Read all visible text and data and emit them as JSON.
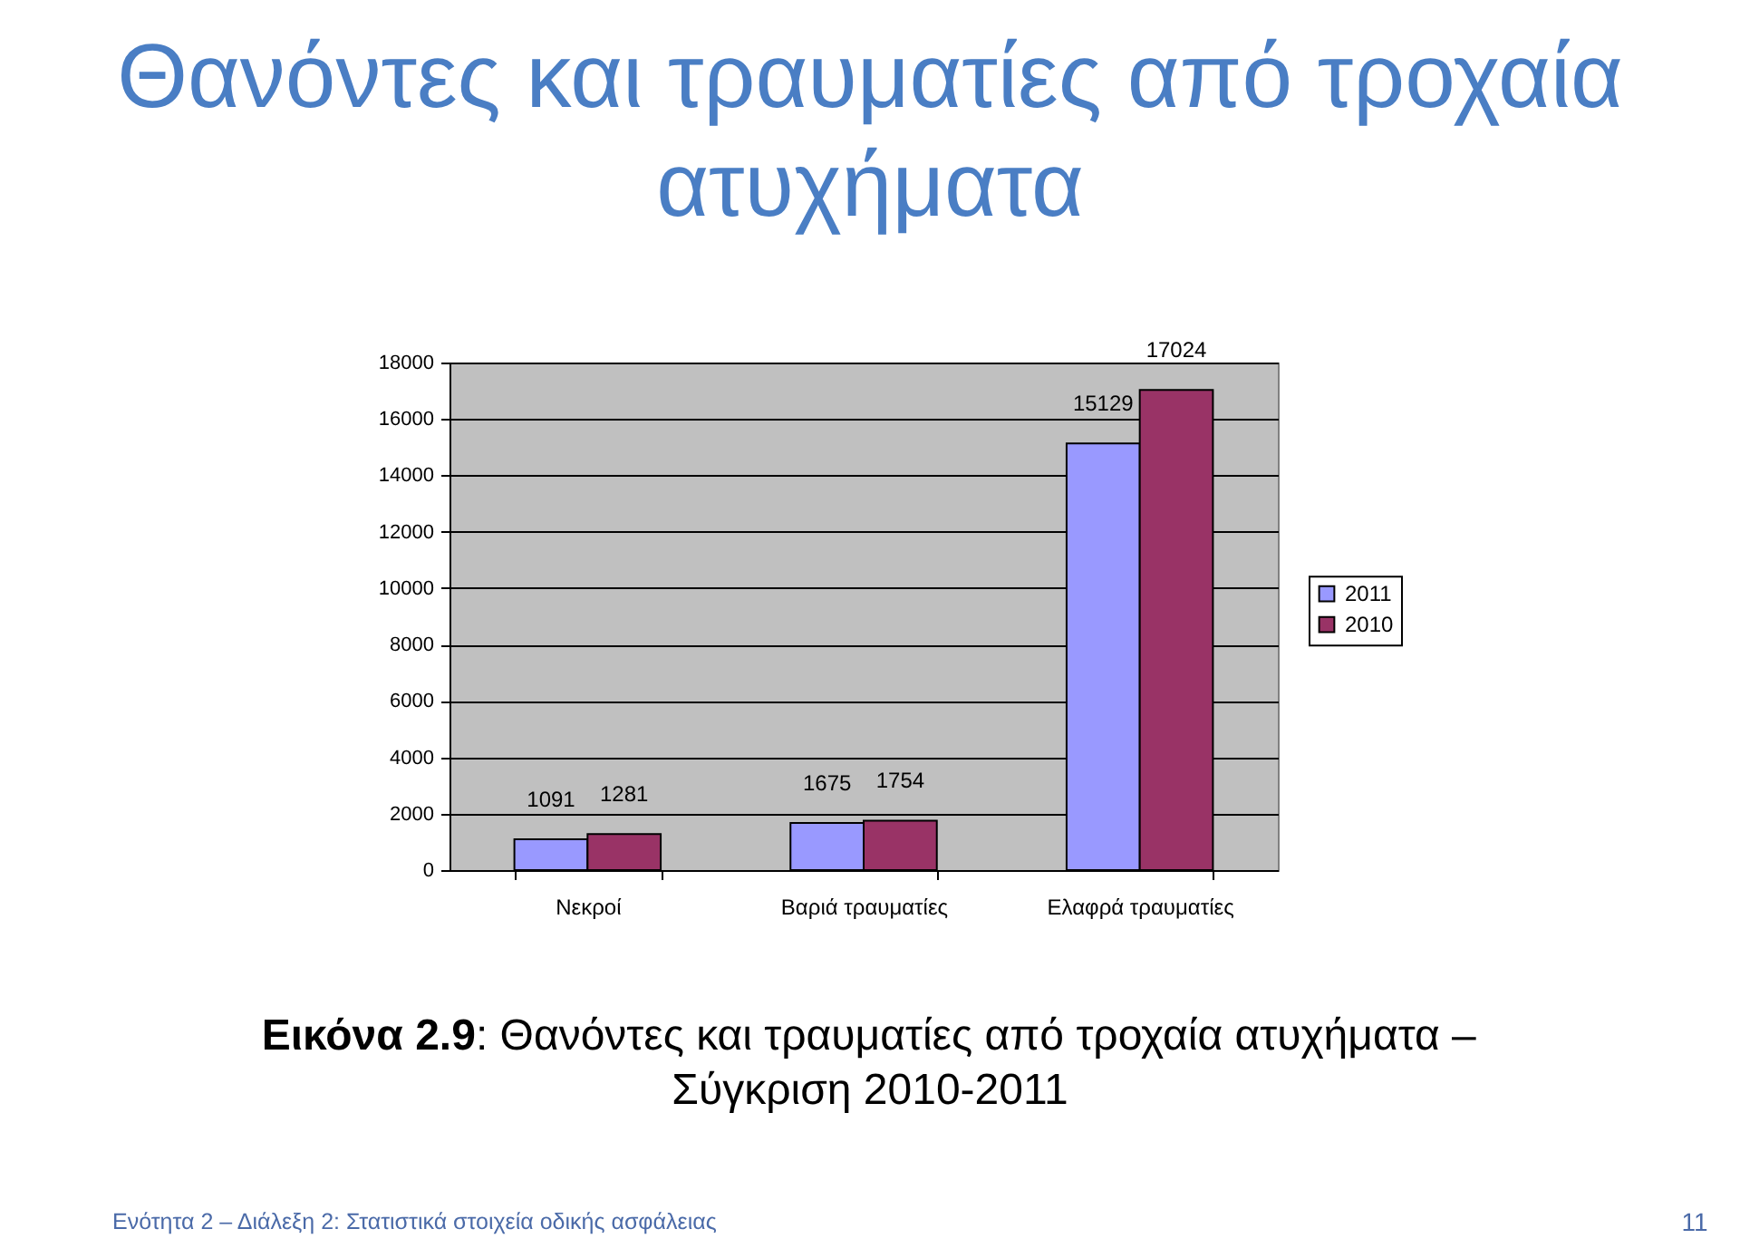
{
  "chart_data": {
    "type": "bar",
    "title": "Θανόντες και τραυματίες από τροχαία ατυχήματα",
    "categories": [
      "Νεκροί",
      "Βαριά τραυματίες",
      "Ελαφρά τραυματίες"
    ],
    "series": [
      {
        "name": "2011",
        "color": "#9999ff",
        "values": [
          1091,
          1675,
          15129
        ]
      },
      {
        "name": "2010",
        "color": "#993366",
        "values": [
          1281,
          1754,
          17024
        ]
      }
    ],
    "ylim": [
      0,
      18000
    ],
    "yticks": [
      0,
      2000,
      4000,
      6000,
      8000,
      10000,
      12000,
      14000,
      16000,
      18000
    ],
    "grid": "y",
    "legend": "right",
    "data_labels": true,
    "annotations": [
      "Εικόνα 2.9: Θανόντες και τραυματίες από τροχαία ατυχήματα – Σύγκριση 2010-2011",
      "Ενότητα 2 – Διάλεξη 2: Στατιστικά στοιχεία οδικής ασφάλειας",
      "11"
    ]
  }
}
